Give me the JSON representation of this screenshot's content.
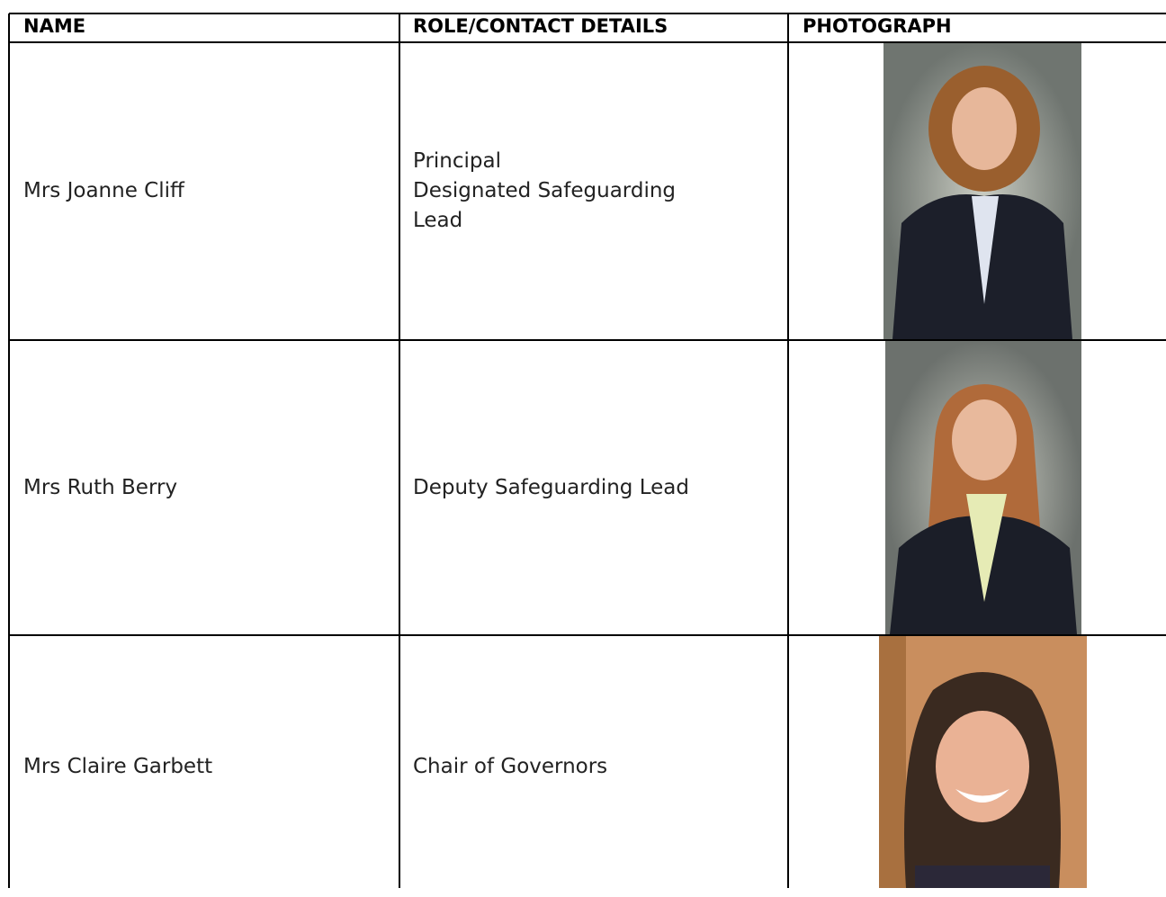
{
  "table": {
    "headers": [
      "NAME",
      "ROLE/CONTACT DETAILS",
      "PHOTOGRAPH"
    ],
    "rows": [
      {
        "name": "Mrs Joanne Cliff",
        "role": [
          "Principal",
          "Designated Safeguarding Lead"
        ]
      },
      {
        "name": "Mrs Ruth Berry",
        "role": [
          "Deputy Safeguarding Lead"
        ]
      },
      {
        "name": "Mrs Claire Garbett",
        "role": [
          "Chair of Governors"
        ]
      }
    ]
  }
}
